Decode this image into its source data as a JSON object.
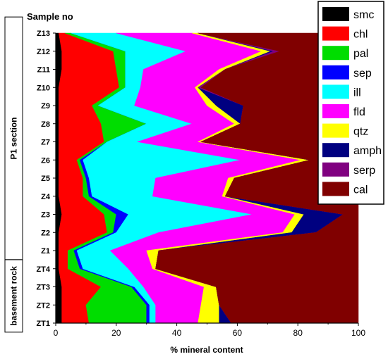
{
  "chart_data": {
    "type": "area",
    "orientation": "horizontal-stacked",
    "title": "",
    "y_header": "Sample no",
    "xlabel": "% mineral content",
    "xlim": [
      0,
      100
    ],
    "xticks": [
      0,
      20,
      40,
      60,
      80,
      100
    ],
    "categories": [
      "ZT1",
      "ZT2",
      "ZT3",
      "ZT4",
      "Z1",
      "Z2",
      "Z3",
      "Z4",
      "Z5",
      "Z6",
      "Z7",
      "Z8",
      "Z9",
      "Z10",
      "Z11",
      "Z12",
      "Z13"
    ],
    "groups": [
      {
        "label": "basement rock",
        "from": "ZT1",
        "to": "ZT4"
      },
      {
        "label": "P1 section",
        "from": "Z1",
        "to": "Z13"
      }
    ],
    "series": [
      {
        "name": "smc",
        "color": "#000000",
        "values": [
          2,
          2,
          2,
          1,
          1,
          1,
          2,
          1,
          1,
          1,
          1,
          1,
          1,
          1,
          2,
          2,
          1
        ]
      },
      {
        "name": "chl",
        "color": "#ff0000",
        "values": [
          9,
          8,
          13,
          3,
          3,
          16,
          14,
          8,
          8,
          6,
          15,
          14,
          11,
          20,
          18,
          17,
          2
        ]
      },
      {
        "name": "pal",
        "color": "#00dd00",
        "values": [
          19,
          20,
          10,
          4,
          2,
          2,
          4,
          2,
          1,
          1,
          1,
          15,
          2,
          2,
          3,
          4,
          2
        ]
      },
      {
        "name": "sep",
        "color": "#0000ff",
        "values": [
          1,
          1,
          1,
          1,
          1,
          1,
          4,
          1,
          1,
          1,
          0,
          0,
          0,
          0,
          0,
          0,
          0
        ]
      },
      {
        "name": "ill",
        "color": "#00ffff",
        "values": [
          2,
          2,
          3,
          15,
          11,
          14,
          41,
          20,
          22,
          52,
          10,
          15,
          12,
          5,
          6,
          20,
          15
        ]
      },
      {
        "name": "fld",
        "color": "#ff00ff",
        "values": [
          14,
          15,
          20,
          8,
          12,
          41,
          14,
          23,
          24,
          20,
          20,
          14,
          24,
          18,
          25,
          25,
          25
        ]
      },
      {
        "name": "qtz",
        "color": "#ffff00",
        "values": [
          7,
          6,
          4,
          1,
          4,
          3,
          3,
          1,
          2,
          3,
          1,
          2,
          3,
          1,
          2,
          3,
          2
        ]
      },
      {
        "name": "amph",
        "color": "#000080",
        "values": [
          4,
          0,
          0,
          0,
          0,
          8,
          13,
          0,
          0,
          0,
          0,
          0,
          9,
          0,
          0,
          1,
          0
        ]
      },
      {
        "name": "serp",
        "color": "#800080",
        "values": [
          0,
          0,
          0,
          0,
          0,
          0,
          0,
          0,
          0,
          0,
          0,
          0,
          0,
          1,
          0,
          2,
          0
        ]
      },
      {
        "name": "cal",
        "color": "#800000",
        "values": [
          42,
          46,
          47,
          67,
          66,
          14,
          5,
          44,
          41,
          16,
          52,
          39,
          38,
          52,
          44,
          26,
          53
        ]
      }
    ],
    "legend_position": "top-right"
  }
}
